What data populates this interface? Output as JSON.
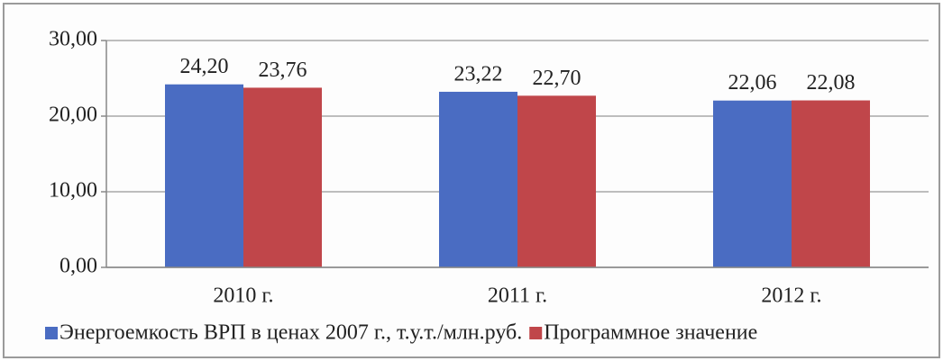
{
  "chart_data": {
    "type": "bar",
    "categories": [
      "2010 г.",
      "2011 г.",
      "2012 г."
    ],
    "series": [
      {
        "name": "Энергоемкость ВРП в ценах 2007 г., т.у.т./млн.руб.",
        "color": "#4a6cc2",
        "values": [
          24.2,
          23.22,
          22.06
        ],
        "value_labels": [
          "24,20",
          "23,22",
          "22,06"
        ]
      },
      {
        "name": "Программное значение",
        "color": "#c0464a",
        "values": [
          23.76,
          22.7,
          22.08
        ],
        "value_labels": [
          "23,76",
          "22,70",
          "22,08"
        ]
      }
    ],
    "ylim": [
      0,
      30
    ],
    "yticks": [
      {
        "value": 0,
        "label": "0,00"
      },
      {
        "value": 10,
        "label": "10,00"
      },
      {
        "value": 20,
        "label": "20,00"
      },
      {
        "value": 30,
        "label": "30,00"
      }
    ],
    "grid": true,
    "legend": "bottom"
  }
}
